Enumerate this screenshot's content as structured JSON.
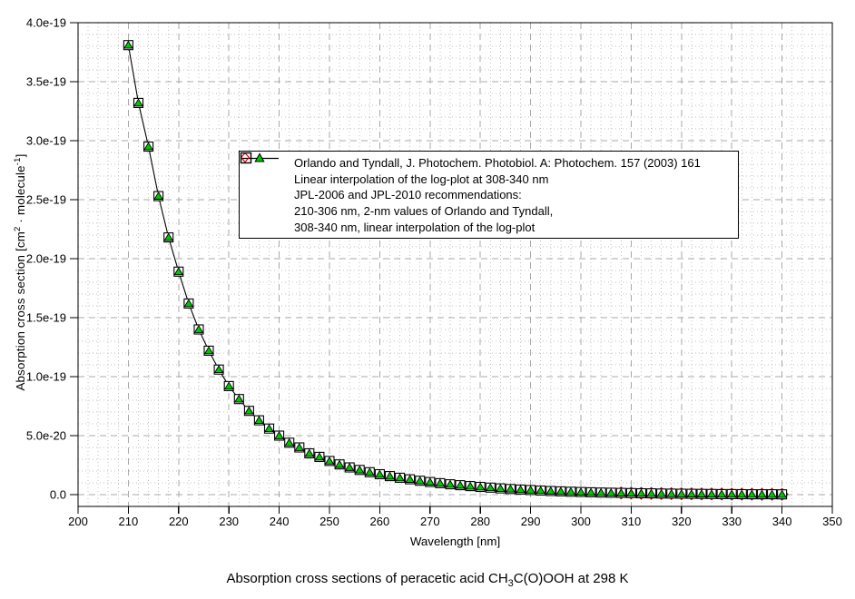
{
  "page_background": "#ffffff",
  "colors": {
    "line": "#000000",
    "triangle_fill": "#00c800",
    "triangle_stroke": "#000000",
    "diamond_stroke": "#cc0000",
    "square_stroke": "#000000",
    "square_fill": "#ffffff",
    "grid_major": "#a8a8a8",
    "grid_minor": "#c2c2c2",
    "frame": "#000000"
  },
  "axes": {
    "x": {
      "label": "Wavelength [nm]",
      "min": 200,
      "max": 350,
      "major_step": 10,
      "minor_step": 2,
      "tick_labels": [
        "200",
        "210",
        "220",
        "230",
        "240",
        "250",
        "260",
        "270",
        "280",
        "290",
        "300",
        "310",
        "320",
        "330",
        "340",
        "350"
      ]
    },
    "y": {
      "label_parts": {
        "p1": "Absorption cross section [cm",
        "sup1": "2",
        "p2": " · molecule",
        "sup2": "-1",
        "p3": "]"
      },
      "min": -0.1,
      "max": 4.0,
      "units": "1e-19 cm2 molecule-1",
      "major_step": 0.5,
      "minor_step": 0.1,
      "tick_values": [
        0,
        0.5,
        1.0,
        1.5,
        2.0,
        2.5,
        3.0,
        3.5,
        4.0
      ],
      "tick_labels": [
        "0.0",
        "5.0e-20",
        "1.0e-19",
        "1.5e-19",
        "2.0e-19",
        "2.5e-19",
        "3.0e-19",
        "3.5e-19",
        "4.0e-19"
      ]
    }
  },
  "legend": {
    "entries": [
      {
        "marker": "line-triangle",
        "label": "Orlando and Tyndall, J. Photochem. Photobiol. A: Photochem. 157 (2003) 161"
      },
      {
        "marker": "open-diamond",
        "label": "Linear interpolation of the log-plot at 308-340 nm"
      },
      {
        "marker": "open-square",
        "label": "JPL-2006 and JPL-2010 recommendations:"
      },
      {
        "marker": "none",
        "label": "210-306 nm, 2-nm values of Orlando and Tyndall,"
      },
      {
        "marker": "none",
        "label": "308-340 nm, linear interpolation of the log-plot"
      }
    ]
  },
  "caption": {
    "p1": "Absorption cross sections of peracetic acid CH",
    "sub": "3",
    "p2": "C(O)OOH at 298 K"
  },
  "chart_data": {
    "type": "line",
    "title": "Absorption cross sections of peracetic acid CH3C(O)OOH at 298 K",
    "xlabel": "Wavelength [nm]",
    "ylabel": "Absorption cross section [cm2 · molecule-1]",
    "x_unit": "nm",
    "y_unit": "1e-19 cm^2 molecule^-1",
    "xlim": [
      200,
      350
    ],
    "ylim": [
      -0.1,
      4.0
    ],
    "grid": "major dashed gray, minor dotted gray",
    "legend_position": "inside upper middle",
    "x": [
      210,
      212,
      214,
      216,
      218,
      220,
      222,
      224,
      226,
      228,
      230,
      232,
      234,
      236,
      238,
      240,
      242,
      244,
      246,
      248,
      250,
      252,
      254,
      256,
      258,
      260,
      262,
      264,
      266,
      268,
      270,
      272,
      274,
      276,
      278,
      280,
      282,
      284,
      286,
      288,
      290,
      292,
      294,
      296,
      298,
      300,
      302,
      304,
      306,
      308,
      310,
      312,
      314,
      316,
      318,
      320,
      322,
      324,
      326,
      328,
      330,
      332,
      334,
      336,
      338,
      340
    ],
    "series": [
      {
        "name": "Orlando and Tyndall, J. Photochem. Photobiol. A: Photochem. 157 (2003) 161",
        "marker": "filled-triangle",
        "marker_color": "#00c800",
        "line": true,
        "line_color": "#000000",
        "values": [
          3.81,
          3.32,
          2.95,
          2.53,
          2.18,
          1.89,
          1.62,
          1.4,
          1.22,
          1.06,
          0.92,
          0.81,
          0.71,
          0.63,
          0.56,
          0.5,
          0.44,
          0.4,
          0.35,
          0.32,
          0.285,
          0.256,
          0.231,
          0.209,
          0.19,
          0.173,
          0.157,
          0.143,
          0.13,
          0.118,
          0.107,
          0.097,
          0.088,
          0.08,
          0.072,
          0.065,
          0.059,
          0.053,
          0.048,
          0.043,
          0.039,
          0.035,
          0.031,
          0.028,
          0.025,
          0.022,
          0.02,
          0.018,
          0.016,
          0.0145,
          0.013,
          0.0117,
          0.0105,
          0.0094,
          0.0084,
          0.0075,
          0.0067,
          0.006,
          0.0054,
          0.0048,
          0.0043,
          0.0038,
          0.0034,
          0.003,
          0.0027,
          0.0024
        ]
      },
      {
        "name": "Linear interpolation of the log-plot at 308-340 nm",
        "marker": "open-diamond",
        "marker_color": "#cc0000",
        "line": false,
        "x": [
          308,
          310,
          312,
          314,
          316,
          318,
          320,
          322,
          324,
          326,
          328,
          330,
          332,
          334,
          336,
          338,
          340
        ],
        "values": [
          0.0145,
          0.013,
          0.0117,
          0.0105,
          0.0094,
          0.0084,
          0.0075,
          0.0067,
          0.006,
          0.0054,
          0.0048,
          0.0043,
          0.0038,
          0.0034,
          0.003,
          0.0027,
          0.0024
        ]
      },
      {
        "name": "JPL-2006 and JPL-2010 recommendations: 210-306 nm, 2-nm values of Orlando and Tyndall, 308-340 nm, linear interpolation of the log-plot",
        "marker": "open-square",
        "marker_color": "#000000",
        "line": false,
        "values": [
          3.81,
          3.32,
          2.95,
          2.53,
          2.18,
          1.89,
          1.62,
          1.4,
          1.22,
          1.06,
          0.92,
          0.81,
          0.71,
          0.63,
          0.56,
          0.5,
          0.44,
          0.4,
          0.35,
          0.32,
          0.285,
          0.256,
          0.231,
          0.209,
          0.19,
          0.173,
          0.157,
          0.143,
          0.13,
          0.118,
          0.107,
          0.097,
          0.088,
          0.08,
          0.072,
          0.065,
          0.059,
          0.053,
          0.048,
          0.043,
          0.039,
          0.035,
          0.031,
          0.028,
          0.025,
          0.022,
          0.02,
          0.018,
          0.016,
          0.0145,
          0.013,
          0.0117,
          0.0105,
          0.0094,
          0.0084,
          0.0075,
          0.0067,
          0.006,
          0.0054,
          0.0048,
          0.0043,
          0.0038,
          0.0034,
          0.003,
          0.0027,
          0.0024
        ]
      }
    ]
  }
}
